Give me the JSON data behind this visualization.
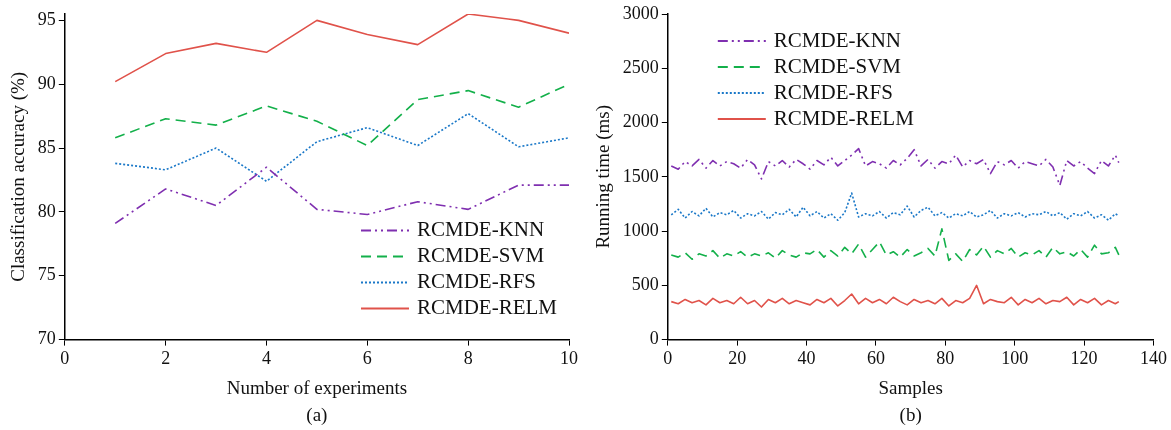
{
  "chart_data": [
    {
      "type": "line",
      "xlabel": "Number of experiments",
      "ylabel": "Classification accuracy (%)",
      "x": [
        1,
        2,
        3,
        4,
        5,
        6,
        7,
        8,
        9,
        10
      ],
      "xlim": [
        0,
        10
      ],
      "xticks": [
        0,
        2,
        4,
        6,
        8,
        10
      ],
      "ylim": [
        70,
        95.5
      ],
      "yticks": [
        70,
        75,
        80,
        85,
        90,
        95
      ],
      "grid": false,
      "legend": "bottom right",
      "annotations": [
        "(a)"
      ],
      "series": [
        {
          "name": "RCMDE-KNN",
          "color": "#7f2fb0",
          "line_style": "dashdot",
          "values": [
            79.1,
            81.8,
            80.5,
            83.5,
            80.2,
            79.8,
            80.8,
            80.2,
            82.1,
            82.1
          ]
        },
        {
          "name": "RCMDE-SVM",
          "color": "#13b04a",
          "line_style": "dashed",
          "values": [
            85.8,
            87.3,
            86.8,
            88.3,
            87.1,
            85.2,
            88.8,
            89.5,
            88.2,
            90.0
          ]
        },
        {
          "name": "RCMDE-RFS",
          "color": "#1a78c8",
          "line_style": "dotted",
          "values": [
            83.8,
            83.3,
            85.0,
            82.4,
            85.5,
            86.6,
            85.2,
            87.7,
            85.1,
            85.8
          ]
        },
        {
          "name": "RCMDE-RELM",
          "color": "#e0524a",
          "line_style": "solid",
          "values": [
            90.2,
            92.4,
            93.2,
            92.5,
            95.0,
            93.9,
            93.1,
            95.5,
            95.0,
            94.0
          ]
        }
      ]
    },
    {
      "type": "line",
      "xlabel": "Samples",
      "ylabel": "Running time (ms)",
      "x": [
        1,
        3,
        5,
        7,
        9,
        11,
        13,
        15,
        17,
        19,
        21,
        23,
        25,
        27,
        29,
        31,
        33,
        35,
        37,
        39,
        41,
        43,
        45,
        47,
        49,
        51,
        53,
        55,
        57,
        59,
        61,
        63,
        65,
        67,
        69,
        71,
        73,
        75,
        77,
        79,
        81,
        83,
        85,
        87,
        89,
        91,
        93,
        95,
        97,
        99,
        101,
        103,
        105,
        107,
        109,
        111,
        113,
        115,
        117,
        119,
        121,
        123,
        125,
        127,
        129,
        130
      ],
      "xlim": [
        0,
        140
      ],
      "xticks": [
        0,
        20,
        40,
        60,
        80,
        100,
        120,
        140
      ],
      "ylim": [
        0,
        3000
      ],
      "yticks": [
        0,
        500,
        1000,
        1500,
        2000,
        2500,
        3000
      ],
      "grid": false,
      "legend": "top left",
      "annotations": [
        "(b)"
      ],
      "series": [
        {
          "name": "RCMDE-KNN",
          "color": "#7f2fb0",
          "line_style": "dashdot",
          "values": [
            1600,
            1570,
            1640,
            1600,
            1660,
            1580,
            1650,
            1600,
            1640,
            1620,
            1580,
            1660,
            1610,
            1480,
            1640,
            1600,
            1650,
            1590,
            1660,
            1620,
            1570,
            1650,
            1610,
            1680,
            1600,
            1650,
            1700,
            1760,
            1600,
            1640,
            1620,
            1580,
            1650,
            1610,
            1670,
            1750,
            1600,
            1660,
            1580,
            1640,
            1620,
            1700,
            1590,
            1650,
            1620,
            1660,
            1530,
            1640,
            1610,
            1650,
            1580,
            1640,
            1620,
            1600,
            1660,
            1590,
            1420,
            1650,
            1600,
            1640,
            1580,
            1530,
            1650,
            1600,
            1700,
            1630
          ]
        },
        {
          "name": "RCMDE-SVM",
          "color": "#13b04a",
          "line_style": "dashed",
          "values": [
            780,
            760,
            800,
            740,
            790,
            770,
            820,
            750,
            790,
            770,
            810,
            760,
            790,
            770,
            800,
            750,
            820,
            780,
            760,
            800,
            790,
            830,
            760,
            820,
            770,
            850,
            790,
            880,
            760,
            830,
            900,
            780,
            810,
            760,
            830,
            770,
            800,
            840,
            770,
            1020,
            730,
            790,
            720,
            830,
            780,
            860,
            760,
            820,
            790,
            840,
            760,
            800,
            780,
            820,
            760,
            850,
            790,
            810,
            770,
            830,
            760,
            870,
            790,
            800,
            850,
            780
          ]
        },
        {
          "name": "RCMDE-RFS",
          "color": "#1a78c8",
          "line_style": "dotted",
          "values": [
            1150,
            1200,
            1120,
            1180,
            1140,
            1210,
            1130,
            1170,
            1150,
            1190,
            1120,
            1160,
            1140,
            1180,
            1110,
            1170,
            1150,
            1200,
            1130,
            1220,
            1140,
            1180,
            1120,
            1160,
            1100,
            1170,
            1350,
            1130,
            1160,
            1140,
            1180,
            1120,
            1170,
            1150,
            1230,
            1130,
            1190,
            1220,
            1140,
            1170,
            1120,
            1160,
            1140,
            1180,
            1130,
            1150,
            1190,
            1120,
            1160,
            1140,
            1170,
            1130,
            1160,
            1150,
            1180,
            1140,
            1170,
            1110,
            1160,
            1140,
            1180,
            1120,
            1150,
            1100,
            1160,
            1140
          ]
        },
        {
          "name": "RCMDE-RELM",
          "color": "#e0524a",
          "line_style": "solid",
          "values": [
            350,
            330,
            370,
            340,
            360,
            320,
            380,
            340,
            360,
            330,
            390,
            330,
            360,
            300,
            370,
            340,
            380,
            330,
            360,
            340,
            320,
            370,
            340,
            380,
            310,
            360,
            420,
            330,
            380,
            340,
            370,
            330,
            390,
            350,
            320,
            370,
            340,
            360,
            330,
            380,
            310,
            360,
            340,
            380,
            500,
            330,
            370,
            350,
            340,
            390,
            320,
            370,
            340,
            380,
            330,
            360,
            350,
            390,
            320,
            370,
            340,
            380,
            320,
            360,
            330,
            350
          ]
        }
      ]
    }
  ]
}
